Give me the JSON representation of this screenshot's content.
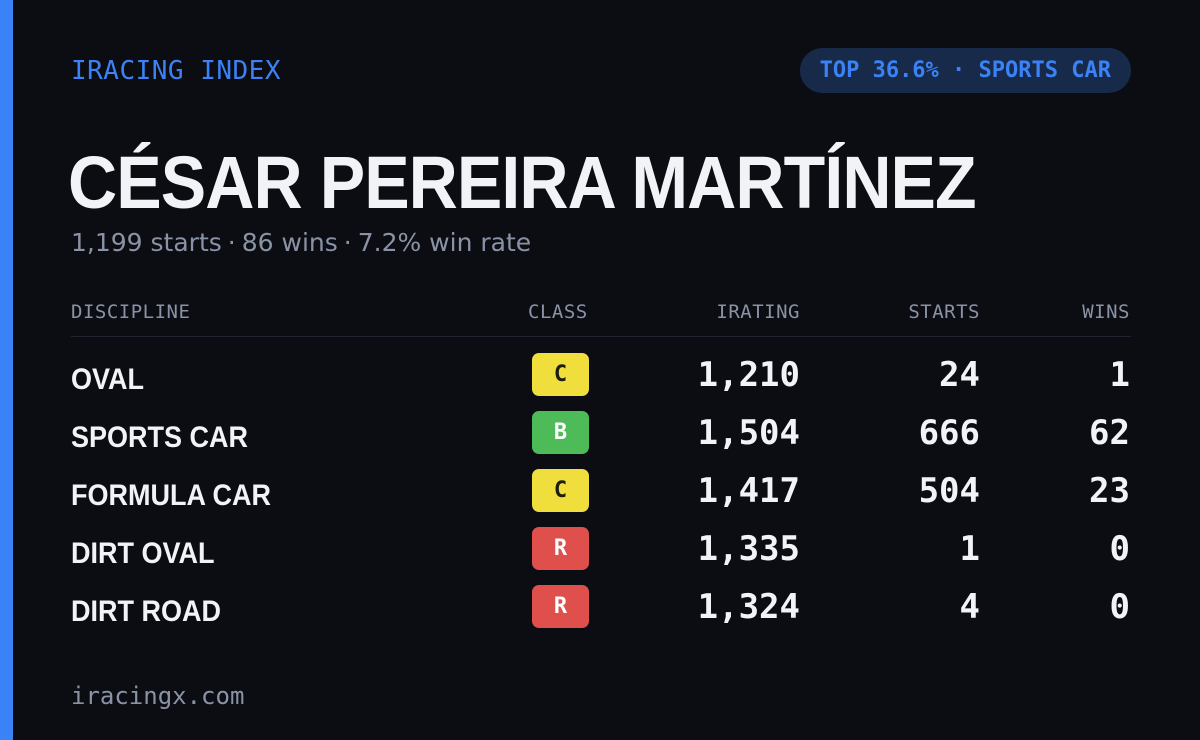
{
  "brand": "IRACING INDEX",
  "badge": "TOP 36.6% · SPORTS CAR",
  "driver": {
    "name": "CÉSAR PEREIRA MARTÍNEZ",
    "starts": "1,199 starts",
    "wins": "86 wins",
    "win_rate": "7.2% win rate",
    "separator": "·"
  },
  "columns": {
    "discipline": "DISCIPLINE",
    "class": "CLASS",
    "irating": "IRATING",
    "starts": "STARTS",
    "wins": "WINS"
  },
  "rows": [
    {
      "discipline": "OVAL",
      "class": "C",
      "irating": "1,210",
      "starts": "24",
      "wins": "1"
    },
    {
      "discipline": "SPORTS CAR",
      "class": "B",
      "irating": "1,504",
      "starts": "666",
      "wins": "62"
    },
    {
      "discipline": "FORMULA CAR",
      "class": "C",
      "irating": "1,417",
      "starts": "504",
      "wins": "23"
    },
    {
      "discipline": "DIRT OVAL",
      "class": "R",
      "irating": "1,335",
      "starts": "1",
      "wins": "0"
    },
    {
      "discipline": "DIRT ROAD",
      "class": "R",
      "irating": "1,324",
      "starts": "4",
      "wins": "0"
    }
  ],
  "class_colors": {
    "C": "#f0de3c",
    "B": "#4cbb58",
    "R": "#df4f4b"
  },
  "accent_color": "#3b82f6",
  "footer": "iracingx.com"
}
